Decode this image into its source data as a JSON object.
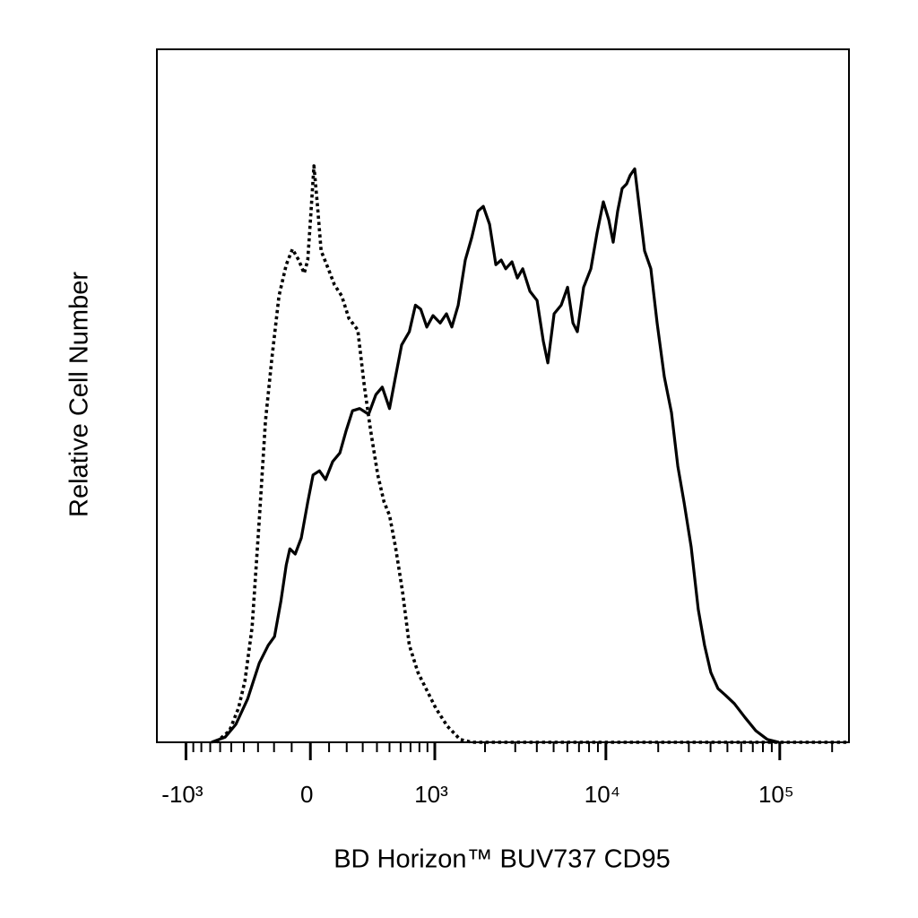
{
  "chart_data": {
    "type": "line",
    "x_label": "BD Horizon™ BUV737 CD95",
    "y_label": "Relative Cell Number",
    "xscale": "biexponential",
    "xlim": [
      -1500,
      250000
    ],
    "ylim": [
      0,
      120
    ],
    "xticks": [
      {
        "value": -1000,
        "label": "-10³"
      },
      0,
      {
        "value": 1000,
        "label": "10³"
      },
      {
        "value": 10000,
        "label": "10⁴"
      },
      {
        "value": 100000,
        "label": "10⁵"
      }
    ],
    "xminorticks": [
      -900,
      -800,
      -700,
      -600,
      -500,
      -400,
      -300,
      -200,
      -100,
      100,
      200,
      300,
      400,
      500,
      600,
      700,
      800,
      900,
      2000,
      3000,
      4000,
      5000,
      6000,
      7000,
      8000,
      9000,
      20000,
      30000,
      40000,
      50000,
      60000,
      70000,
      80000,
      90000,
      200000
    ],
    "series": [
      {
        "color": "#000000",
        "dash": "solid",
        "x": [
          -687,
          -553,
          -462,
          -372,
          -292,
          -235,
          -197,
          -160,
          -130,
          -110,
          -81,
          -48,
          -14,
          14,
          48,
          81,
          120,
          160,
          197,
          235,
          280,
          340,
          392,
          441,
          500,
          553,
          610,
          687,
          754,
          816,
          892,
          975,
          1080,
          1179,
          1271,
          1388,
          1530,
          1670,
          1818,
          1954,
          2126,
          2314,
          2488,
          2640,
          2872,
          3084,
          3316,
          3648,
          4012,
          4360,
          4632,
          5032,
          5532,
          6016,
          6460,
          6852,
          7448,
          8192,
          8900,
          9672,
          10384,
          11016,
          11696,
          12408,
          13168,
          13812,
          14656,
          15548,
          16700,
          18148,
          19720,
          21680,
          23840,
          25920,
          28160,
          30960,
          34000,
          36960,
          40160,
          44160,
          48560,
          54760,
          63120,
          72800,
          84800,
          98920
        ],
        "values": [
          0,
          0.9,
          3.1,
          7.5,
          13.7,
          16.8,
          18.3,
          24.5,
          30.7,
          33.5,
          32.6,
          35.4,
          41.6,
          46.3,
          47.0,
          45.5,
          48.6,
          50.1,
          54.0,
          57.4,
          57.8,
          56.8,
          60.2,
          61.5,
          57.8,
          63.3,
          68.8,
          71.1,
          75.7,
          75.0,
          71.9,
          73.9,
          72.6,
          74.2,
          71.9,
          75.7,
          83.5,
          87.4,
          92.0,
          92.8,
          89.7,
          82.7,
          83.5,
          82.0,
          83.2,
          80.4,
          82.0,
          78.1,
          76.5,
          69.5,
          65.7,
          74.2,
          75.7,
          78.8,
          72.6,
          71.1,
          78.8,
          82.0,
          88.2,
          93.6,
          90.5,
          86.6,
          92.0,
          95.9,
          96.7,
          98.2,
          99.3,
          92.8,
          85.1,
          82.0,
          72.6,
          63.3,
          57.1,
          47.8,
          41.6,
          33.8,
          23.0,
          16.8,
          12.1,
          9.3,
          8.2,
          6.7,
          4.3,
          2.0,
          0.5,
          0
        ]
      },
      {
        "color": "#000000",
        "dash": "dotted",
        "x": [
          -639,
          -515,
          -441,
          -392,
          -340,
          -292,
          -252,
          -213,
          -171,
          -130,
          -96,
          -62,
          -33,
          -14,
          5,
          19,
          38,
          57,
          96,
          130,
          171,
          213,
          268,
          310,
          354,
          406,
          455,
          500,
          553,
          618,
          687,
          783,
          892,
          1014,
          1193,
          1424,
          1670,
          250000
        ],
        "values": [
          0,
          2.0,
          5.9,
          10.6,
          19.9,
          38.5,
          55.6,
          66.4,
          77.3,
          82.7,
          85.4,
          83.5,
          81.2,
          83.5,
          92.8,
          99.8,
          92.8,
          85.1,
          82.0,
          79.2,
          77.3,
          73.4,
          71.4,
          61.8,
          54.0,
          46.3,
          41.6,
          39.3,
          33.8,
          26.1,
          16.8,
          12.1,
          9.0,
          5.9,
          2.8,
          0.5,
          0,
          0
        ]
      }
    ]
  }
}
